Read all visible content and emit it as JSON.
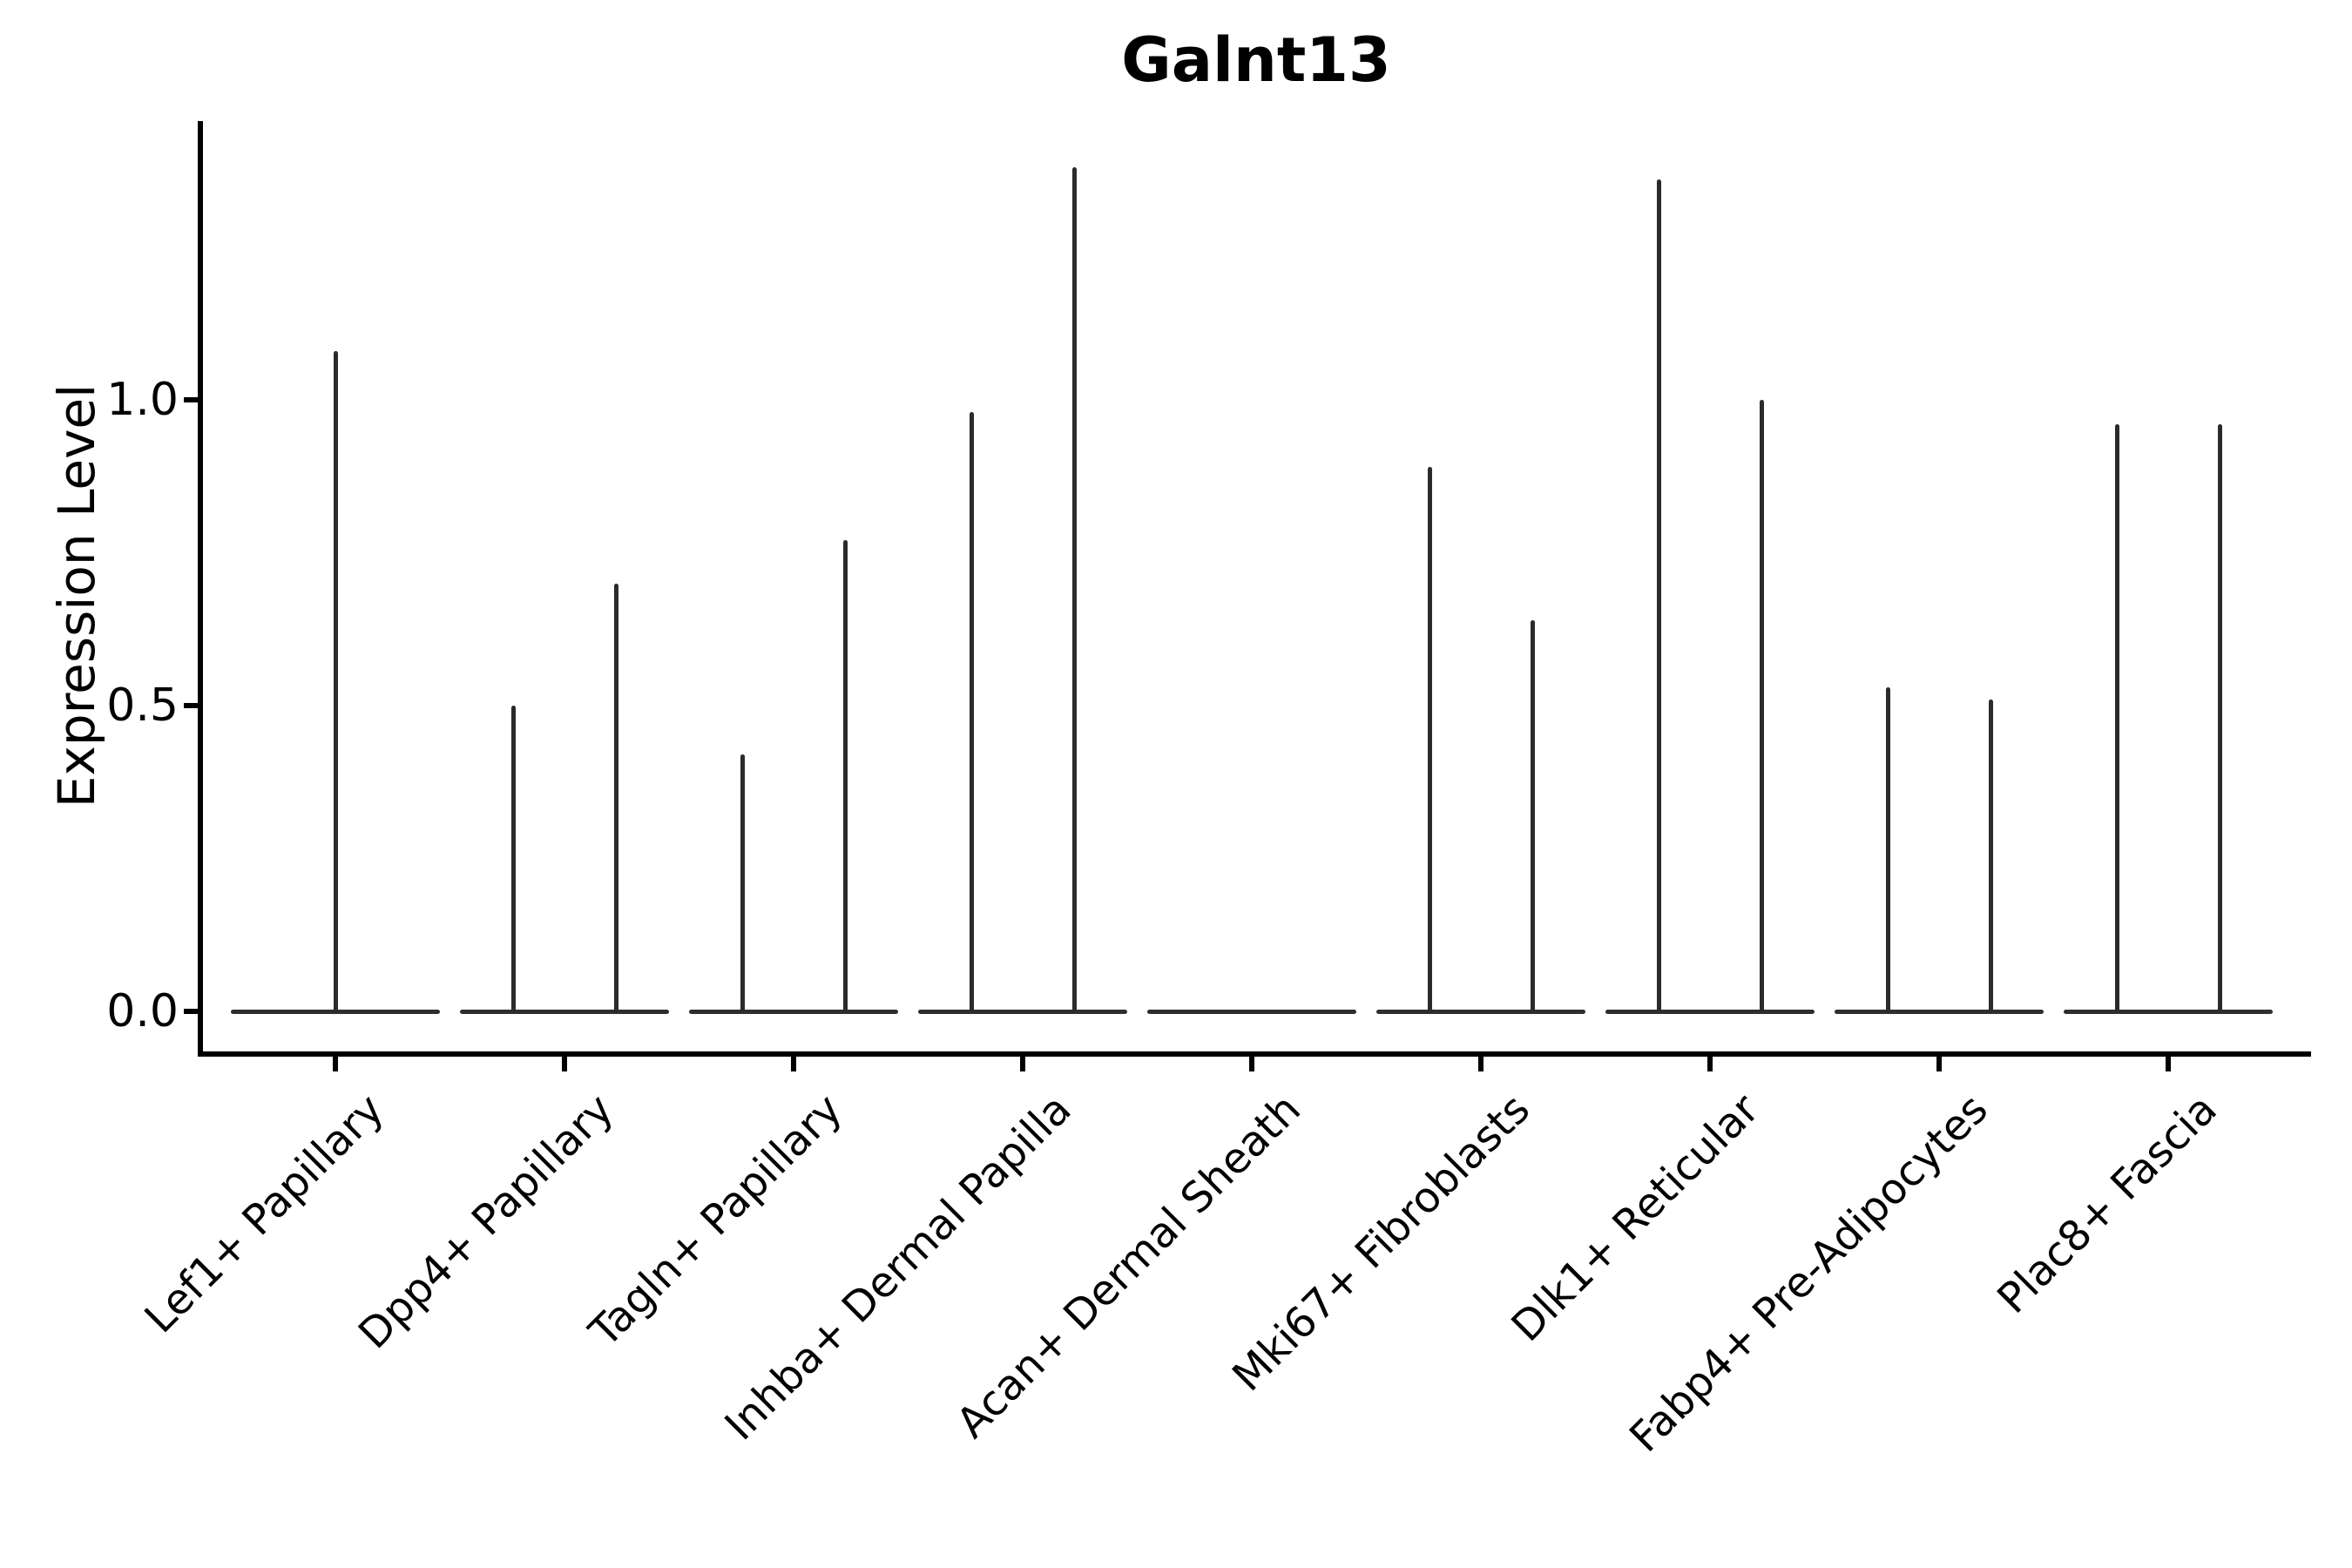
{
  "figure": {
    "background": "#ffffff",
    "spine_color": "#000000",
    "violin_color": "#2b2b2b",
    "text_color": "#000000"
  },
  "chart_data": {
    "type": "violin",
    "title": "Galnt13",
    "xlabel": "",
    "ylabel": "Expression Level",
    "grid": false,
    "legend": null,
    "ylim": [
      -0.07,
      1.46
    ],
    "ytick_labels": [
      "0.0",
      "0.5",
      "1.0"
    ],
    "ytick_values": [
      0.0,
      0.5,
      1.0
    ],
    "categories": [
      "Lef1+ Papillary",
      "Dpp4+ Papillary",
      "Tagln+ Papillary",
      "Inhba+ Dermal Papilla",
      "Acan+ Dermal Sheath",
      "Mki67+ Fibroblasts",
      "Dlk1+ Reticular",
      "Fabp4+ Pre-Adipocytes",
      "Plac8+ Fascia"
    ],
    "violins": [
      {
        "category": "Lef1+ Papillary",
        "body_at_zero": true,
        "spikes": [
          {
            "side": 0,
            "max": 1.08
          }
        ]
      },
      {
        "category": "Dpp4+ Papillary",
        "body_at_zero": true,
        "spikes": [
          {
            "side": -1,
            "max": 0.5
          },
          {
            "side": 1,
            "max": 0.7
          }
        ]
      },
      {
        "category": "Tagln+ Papillary",
        "body_at_zero": true,
        "spikes": [
          {
            "side": -1,
            "max": 0.42
          },
          {
            "side": 1,
            "max": 0.77
          }
        ]
      },
      {
        "category": "Inhba+ Dermal Papilla",
        "body_at_zero": true,
        "spikes": [
          {
            "side": -1,
            "max": 0.98
          },
          {
            "side": 1,
            "max": 1.38
          }
        ]
      },
      {
        "category": "Acan+ Dermal Sheath",
        "body_at_zero": true,
        "spikes": []
      },
      {
        "category": "Mki67+ Fibroblasts",
        "body_at_zero": true,
        "spikes": [
          {
            "side": -1,
            "max": 0.89
          },
          {
            "side": 1,
            "max": 0.64
          }
        ]
      },
      {
        "category": "Dlk1+ Reticular",
        "body_at_zero": true,
        "spikes": [
          {
            "side": -1,
            "max": 1.36
          },
          {
            "side": 1,
            "max": 1.0
          }
        ]
      },
      {
        "category": "Fabp4+ Pre-Adipocytes",
        "body_at_zero": true,
        "spikes": [
          {
            "side": -1,
            "max": 0.53
          },
          {
            "side": 1,
            "max": 0.51
          }
        ]
      },
      {
        "category": "Plac8+ Fascia",
        "body_at_zero": true,
        "spikes": [
          {
            "side": -1,
            "max": 0.96
          },
          {
            "side": 1,
            "max": 0.96
          }
        ]
      }
    ]
  }
}
